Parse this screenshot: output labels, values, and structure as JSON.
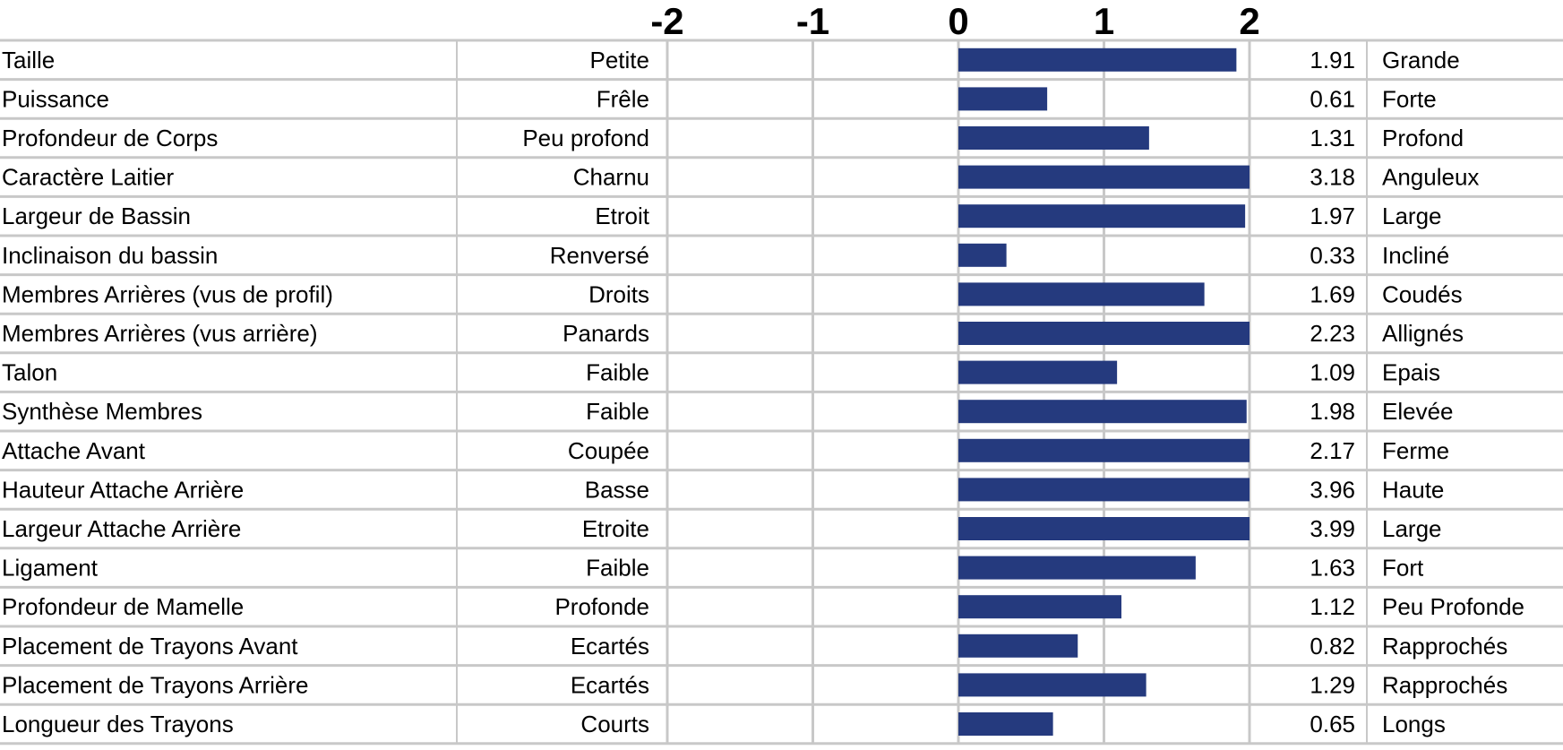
{
  "chart_data": {
    "type": "bar",
    "orientation": "horizontal",
    "title": "",
    "xlabel": "",
    "ylabel": "",
    "xlim": [
      -2,
      2
    ],
    "ticks": [
      {
        "value": -2,
        "label": "-2"
      },
      {
        "value": -1,
        "label": "-1"
      },
      {
        "value": 0,
        "label": "0"
      },
      {
        "value": 1,
        "label": "1"
      },
      {
        "value": 2,
        "label": "2"
      }
    ],
    "grid": true,
    "bar_color": "#253a7e",
    "clip_bars_at_axis_max": true,
    "rows": [
      {
        "trait": "Taille",
        "low": "Petite",
        "value": 1.91,
        "value_label": "1.91",
        "high": "Grande"
      },
      {
        "trait": "Puissance",
        "low": "Frêle",
        "value": 0.61,
        "value_label": "0.61",
        "high": "Forte"
      },
      {
        "trait": "Profondeur de Corps",
        "low": "Peu profond",
        "value": 1.31,
        "value_label": "1.31",
        "high": "Profond"
      },
      {
        "trait": "Caractère Laitier",
        "low": "Charnu",
        "value": 3.18,
        "value_label": "3.18",
        "high": "Anguleux"
      },
      {
        "trait": "Largeur de Bassin",
        "low": "Etroit",
        "value": 1.97,
        "value_label": "1.97",
        "high": "Large"
      },
      {
        "trait": "Inclinaison du bassin",
        "low": "Renversé",
        "value": 0.33,
        "value_label": "0.33",
        "high": "Incliné"
      },
      {
        "trait": "Membres Arrières (vus de profil)",
        "low": "Droits",
        "value": 1.69,
        "value_label": "1.69",
        "high": "Coudés"
      },
      {
        "trait": "Membres Arrières (vus arrière)",
        "low": "Panards",
        "value": 2.23,
        "value_label": "2.23",
        "high": "Allignés"
      },
      {
        "trait": "Talon",
        "low": "Faible",
        "value": 1.09,
        "value_label": "1.09",
        "high": "Epais"
      },
      {
        "trait": "Synthèse Membres",
        "low": "Faible",
        "value": 1.98,
        "value_label": "1.98",
        "high": "Elevée"
      },
      {
        "trait": "Attache Avant",
        "low": "Coupée",
        "value": 2.17,
        "value_label": "2.17",
        "high": "Ferme"
      },
      {
        "trait": "Hauteur Attache Arrière",
        "low": "Basse",
        "value": 3.96,
        "value_label": "3.96",
        "high": "Haute"
      },
      {
        "trait": "Largeur Attache Arrière",
        "low": "Etroite",
        "value": 3.99,
        "value_label": "3.99",
        "high": "Large"
      },
      {
        "trait": "Ligament",
        "low": "Faible",
        "value": 1.63,
        "value_label": "1.63",
        "high": "Fort"
      },
      {
        "trait": "Profondeur de Mamelle",
        "low": "Profonde",
        "value": 1.12,
        "value_label": "1.12",
        "high": "Peu Profonde"
      },
      {
        "trait": "Placement de Trayons Avant",
        "low": "Ecartés",
        "value": 0.82,
        "value_label": "0.82",
        "high": "Rapprochés"
      },
      {
        "trait": "Placement de Trayons Arrière",
        "low": "Ecartés",
        "value": 1.29,
        "value_label": "1.29",
        "high": "Rapprochés"
      },
      {
        "trait": "Longueur des Trayons",
        "low": "Courts",
        "value": 0.65,
        "value_label": "0.65",
        "high": "Longs"
      }
    ]
  }
}
